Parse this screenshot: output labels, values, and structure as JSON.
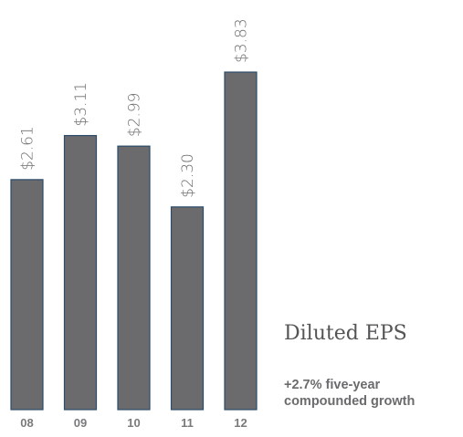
{
  "chart_data": {
    "type": "bar",
    "categories": [
      "08",
      "09",
      "10",
      "11",
      "12"
    ],
    "values": [
      2.61,
      3.11,
      2.99,
      2.3,
      3.83
    ],
    "value_labels": [
      "$2.61",
      "$3.11",
      "$2.99",
      "$2.30",
      "$3.83"
    ],
    "title": "Diluted EPS",
    "subtitle": "+2.7% five-year compounded growth",
    "ylim": [
      0,
      4.6
    ],
    "grid": false,
    "bar_color": "#6b6b6d",
    "bar_edge_color": "#2b4c6b"
  }
}
